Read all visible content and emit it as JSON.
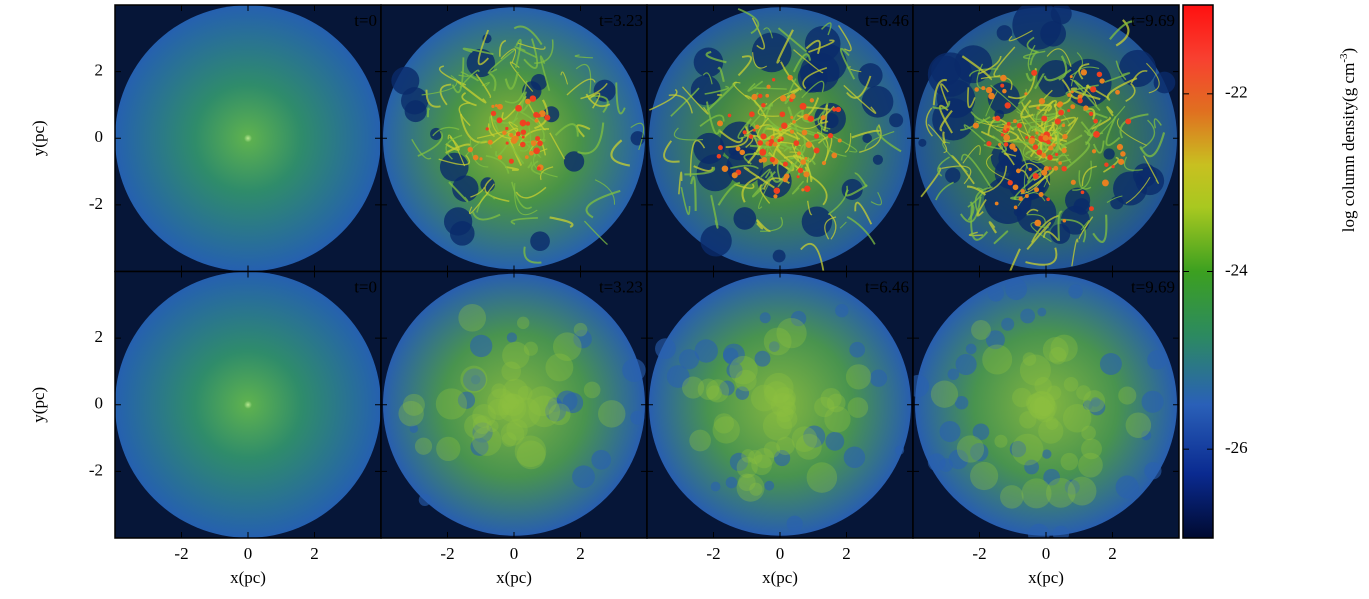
{
  "figure": {
    "panels": [
      {
        "label": "t=0"
      },
      {
        "label": "t=3.23"
      },
      {
        "label": "t=6.46"
      },
      {
        "label": "t=9.69"
      },
      {
        "label": "t=0"
      },
      {
        "label": "t=3.23"
      },
      {
        "label": "t=6.46"
      },
      {
        "label": "t=9.69"
      }
    ],
    "columns": 4,
    "xlabel": "x(pc)",
    "ylabel": "y(pc)",
    "xlim": [
      -4,
      4
    ],
    "ylim": [
      -4,
      4
    ],
    "xticks": [
      -2,
      0,
      2
    ],
    "yticks": [
      -2,
      0,
      2
    ],
    "colorbar": {
      "label": "log column density(g cm",
      "label_sup": "-3",
      "label_end": ")",
      "lim": [
        -27,
        -21
      ],
      "ticks": [
        -26,
        -24,
        -22
      ]
    }
  }
}
